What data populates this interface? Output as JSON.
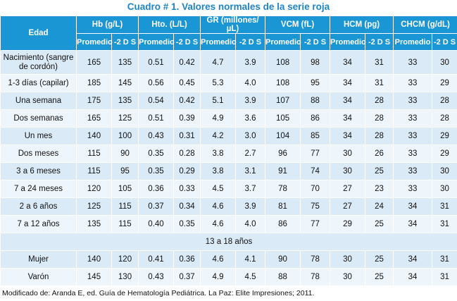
{
  "title": "Cuadro # 1. Valores normales de la serie roja",
  "header": {
    "edad": "Edad",
    "groups": [
      "Hb (g/L)",
      "Hto. (L/L)",
      "GR (millones/µL)",
      "VCM (fL)",
      "HCM (pg)",
      "CHCM (g/dL)"
    ],
    "sub_promedio": "Promedio",
    "sub_2ds": "-2 D S"
  },
  "rows": [
    {
      "label": "Nacimiento (sangre de cordón)",
      "values": [
        "165",
        "135",
        "0.51",
        "0.42",
        "4.7",
        "3.9",
        "108",
        "98",
        "34",
        "31",
        "33",
        "30"
      ]
    },
    {
      "label": "1-3 días (capilar)",
      "values": [
        "185",
        "145",
        "0.56",
        "0.45",
        "5.3",
        "4.0",
        "108",
        "95",
        "34",
        "31",
        "33",
        "29"
      ]
    },
    {
      "label": "Una semana",
      "values": [
        "175",
        "135",
        "0.54",
        "0.42",
        "5.1",
        "3.9",
        "107",
        "88",
        "34",
        "28",
        "33",
        "28"
      ]
    },
    {
      "label": "Dos semanas",
      "values": [
        "165",
        "125",
        "0.51",
        "0.39",
        "4.9",
        "3.6",
        "105",
        "86",
        "34",
        "28",
        "33",
        "28"
      ]
    },
    {
      "label": "Un mes",
      "values": [
        "140",
        "100",
        "0.43",
        "0.31",
        "4.2",
        "3.0",
        "104",
        "85",
        "34",
        "28",
        "33",
        "29"
      ]
    },
    {
      "label": "Dos meses",
      "values": [
        "115",
        "90",
        "0.35",
        "0.28",
        "3.8",
        "2.7",
        "96",
        "77",
        "30",
        "26",
        "33",
        "29"
      ]
    },
    {
      "label": "3 a 6 meses",
      "values": [
        "115",
        "95",
        "0.35",
        "0.29",
        "3.8",
        "3.1",
        "91",
        "74",
        "30",
        "25",
        "33",
        "30"
      ]
    },
    {
      "label": "7 a 24 meses",
      "values": [
        "120",
        "105",
        "0.36",
        "0.33",
        "4.5",
        "3.7",
        "78",
        "70",
        "27",
        "23",
        "33",
        "30"
      ]
    },
    {
      "label": "2 a 6 años",
      "values": [
        "125",
        "115",
        "0.37",
        "0.34",
        "4.6",
        "3.9",
        "81",
        "75",
        "27",
        "24",
        "34",
        "31"
      ]
    },
    {
      "label": "7 a 12 años",
      "values": [
        "135",
        "115",
        "0.40",
        "0.35",
        "4.6",
        "4.0",
        "86",
        "77",
        "29",
        "25",
        "34",
        "31"
      ]
    }
  ],
  "section_label": "13 a 18 años",
  "rows2": [
    {
      "label": "Mujer",
      "values": [
        "140",
        "120",
        "0.41",
        "0.36",
        "4.6",
        "4.1",
        "90",
        "78",
        "30",
        "25",
        "34",
        "31"
      ]
    },
    {
      "label": "Varón",
      "values": [
        "145",
        "130",
        "0.43",
        "0.37",
        "4.9",
        "4.5",
        "88",
        "78",
        "30",
        "25",
        "34",
        "31"
      ]
    }
  ],
  "footnote": "Modificado de: Aranda E, ed. Guía de Hematología Pediátrica. La Paz: Elite Impresiones; 2011."
}
